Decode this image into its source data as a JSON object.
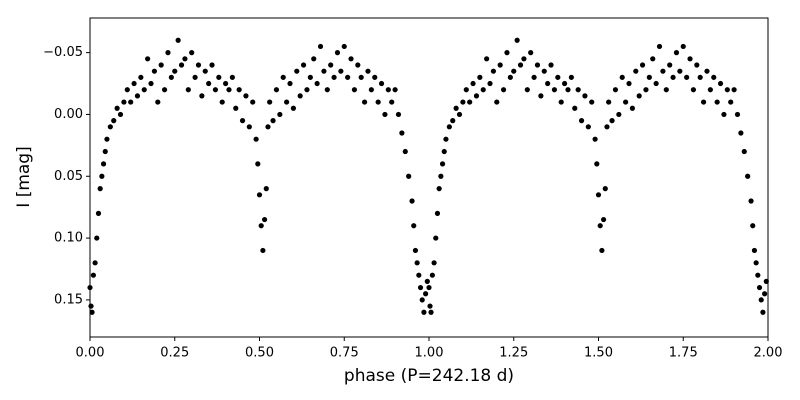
{
  "chart_data": {
    "type": "scatter",
    "x_label": "phase (P=242.18 d)",
    "y_label": "I [mag]",
    "color": "#000000",
    "y_inverted": true,
    "xlim": [
      0,
      2
    ],
    "ylim": [
      -0.078,
      0.18
    ],
    "xticks": [
      {
        "value": 0,
        "label": "0.00"
      },
      0.25,
      {
        "value": 0.5,
        "label": "0.50"
      },
      0.75,
      {
        "value": 1,
        "label": "1.00"
      },
      1.25,
      {
        "value": 1.5,
        "label": "1.50"
      },
      1.75,
      {
        "value": 2,
        "label": "2.00"
      }
    ],
    "yticks": [
      {
        "value": -0.05,
        "label": "−0.05"
      },
      {
        "value": 0,
        "label": "0.00"
      },
      0.05,
      {
        "value": 0.1,
        "label": "0.10"
      },
      0.15
    ],
    "x": [
      0,
      0.003,
      0.006,
      0.01,
      0.015,
      0.02,
      0.025,
      0.03,
      0.035,
      0.04,
      0.045,
      0.05,
      0.06,
      0.07,
      0.08,
      0.09,
      0.1,
      0.11,
      0.12,
      0.13,
      0.14,
      0.15,
      0.16,
      0.17,
      0.18,
      0.19,
      0.2,
      0.21,
      0.22,
      0.23,
      0.24,
      0.25,
      0.26,
      0.27,
      0.28,
      0.29,
      0.3,
      0.31,
      0.32,
      0.33,
      0.34,
      0.35,
      0.36,
      0.37,
      0.38,
      0.39,
      0.4,
      0.41,
      0.42,
      0.43,
      0.44,
      0.45,
      0.46,
      0.47,
      0.48,
      0.49,
      0.495,
      0.5,
      0.505,
      0.51,
      0.515,
      0.52,
      0.525,
      0.53,
      0.54,
      0.55,
      0.56,
      0.57,
      0.58,
      0.59,
      0.6,
      0.61,
      0.62,
      0.63,
      0.64,
      0.65,
      0.66,
      0.67,
      0.68,
      0.69,
      0.7,
      0.71,
      0.72,
      0.73,
      0.74,
      0.75,
      0.76,
      0.77,
      0.78,
      0.79,
      0.8,
      0.81,
      0.82,
      0.83,
      0.84,
      0.85,
      0.86,
      0.87,
      0.88,
      0.89,
      0.9,
      0.91,
      0.92,
      0.93,
      0.94,
      0.95,
      0.955,
      0.96,
      0.965,
      0.97,
      0.975,
      0.98,
      0.985,
      0.99,
      0.995,
      1,
      1.003,
      1.006,
      1.01,
      1.015,
      1.02,
      1.025,
      1.03,
      1.035,
      1.04,
      1.045,
      1.05,
      1.06,
      1.07,
      1.08,
      1.09,
      1.1,
      1.11,
      1.12,
      1.13,
      1.14,
      1.15,
      1.16,
      1.17,
      1.18,
      1.19,
      1.2,
      1.21,
      1.22,
      1.23,
      1.24,
      1.25,
      1.26,
      1.27,
      1.28,
      1.29,
      1.3,
      1.31,
      1.32,
      1.33,
      1.34,
      1.35,
      1.36,
      1.37,
      1.38,
      1.39,
      1.4,
      1.41,
      1.42,
      1.43,
      1.44,
      1.45,
      1.46,
      1.47,
      1.48,
      1.49,
      1.495,
      1.5,
      1.505,
      1.51,
      1.515,
      1.52,
      1.525,
      1.53,
      1.54,
      1.55,
      1.56,
      1.57,
      1.58,
      1.59,
      1.6,
      1.61,
      1.62,
      1.63,
      1.64,
      1.65,
      1.66,
      1.67,
      1.68,
      1.69,
      1.7,
      1.71,
      1.72,
      1.73,
      1.74,
      1.75,
      1.76,
      1.77,
      1.78,
      1.79,
      1.8,
      1.81,
      1.82,
      1.83,
      1.84,
      1.85,
      1.86,
      1.87,
      1.88,
      1.89,
      1.9,
      1.91,
      1.92,
      1.93,
      1.94,
      1.95,
      1.955,
      1.96,
      1.965,
      1.97,
      1.975,
      1.98,
      1.985,
      1.99,
      1.995
    ],
    "values": [
      0.14,
      0.155,
      0.16,
      0.13,
      0.12,
      0.1,
      0.08,
      0.06,
      0.05,
      0.04,
      0.03,
      0.02,
      0.01,
      0.005,
      -0.005,
      0,
      -0.01,
      -0.02,
      -0.01,
      -0.025,
      -0.015,
      -0.03,
      -0.02,
      -0.045,
      -0.025,
      -0.035,
      -0.01,
      -0.04,
      -0.02,
      -0.05,
      -0.03,
      -0.035,
      -0.06,
      -0.04,
      -0.045,
      -0.02,
      -0.05,
      -0.03,
      -0.04,
      -0.015,
      -0.035,
      -0.025,
      -0.04,
      -0.02,
      -0.03,
      -0.01,
      -0.025,
      -0.02,
      -0.03,
      -0.005,
      -0.02,
      0.005,
      -0.015,
      0.01,
      -0.01,
      0.02,
      0.04,
      0.065,
      0.09,
      0.11,
      0.085,
      0.06,
      0.01,
      -0.01,
      0.005,
      -0.02,
      0,
      -0.03,
      -0.01,
      -0.025,
      -0.005,
      -0.035,
      -0.015,
      -0.04,
      -0.02,
      -0.03,
      -0.045,
      -0.025,
      -0.055,
      -0.035,
      -0.02,
      -0.04,
      -0.03,
      -0.05,
      -0.035,
      -0.055,
      -0.03,
      -0.045,
      -0.02,
      -0.04,
      -0.03,
      -0.01,
      -0.035,
      -0.02,
      -0.03,
      -0.01,
      -0.025,
      0,
      -0.02,
      -0.01,
      -0.02,
      0,
      0.015,
      0.03,
      0.05,
      0.07,
      0.09,
      0.11,
      0.12,
      0.13,
      0.14,
      0.15,
      0.16,
      0.145,
      0.135,
      0.14,
      0.155,
      0.16,
      0.13,
      0.12,
      0.1,
      0.08,
      0.06,
      0.05,
      0.04,
      0.03,
      0.02,
      0.01,
      0.005,
      -0.005,
      0,
      -0.01,
      -0.02,
      -0.01,
      -0.025,
      -0.015,
      -0.03,
      -0.02,
      -0.045,
      -0.025,
      -0.035,
      -0.01,
      -0.04,
      -0.02,
      -0.05,
      -0.03,
      -0.035,
      -0.06,
      -0.04,
      -0.045,
      -0.02,
      -0.05,
      -0.03,
      -0.04,
      -0.015,
      -0.035,
      -0.025,
      -0.04,
      -0.02,
      -0.03,
      -0.01,
      -0.025,
      -0.02,
      -0.03,
      -0.005,
      -0.02,
      0.005,
      -0.015,
      0.01,
      -0.01,
      0.02,
      0.04,
      0.065,
      0.09,
      0.11,
      0.085,
      0.06,
      0.01,
      -0.01,
      0.005,
      -0.02,
      0,
      -0.03,
      -0.01,
      -0.025,
      -0.005,
      -0.035,
      -0.015,
      -0.04,
      -0.02,
      -0.03,
      -0.045,
      -0.025,
      -0.055,
      -0.035,
      -0.02,
      -0.04,
      -0.03,
      -0.05,
      -0.035,
      -0.055,
      -0.03,
      -0.045,
      -0.02,
      -0.04,
      -0.03,
      -0.01,
      -0.035,
      -0.02,
      -0.03,
      -0.01,
      -0.025,
      0,
      -0.02,
      -0.01,
      -0.02,
      0,
      0.015,
      0.03,
      0.05,
      0.07,
      0.09,
      0.11,
      0.12,
      0.13,
      0.14,
      0.15,
      0.16,
      0.145,
      0.135
    ]
  }
}
